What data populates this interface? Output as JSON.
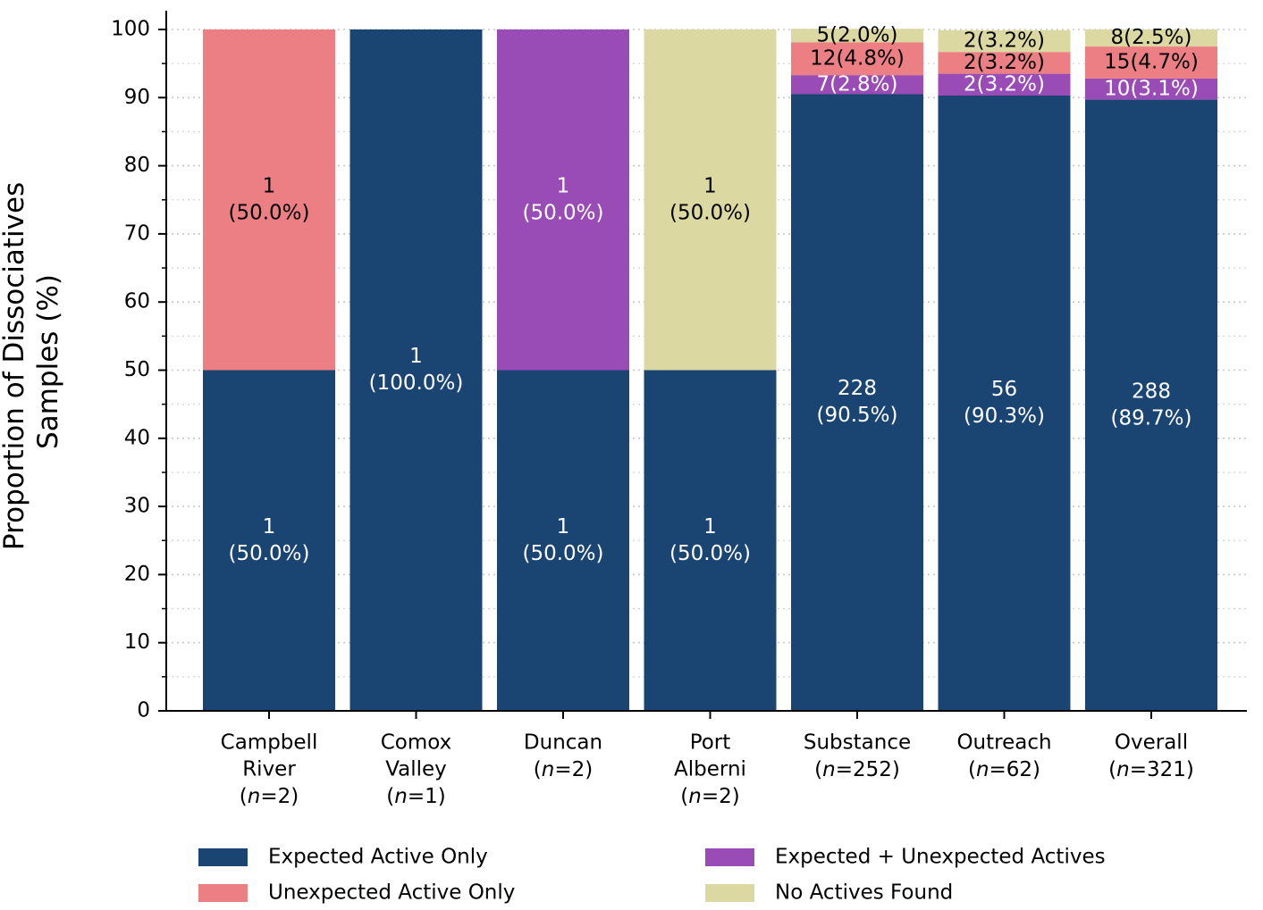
{
  "chart_data": {
    "type": "stacked_bar",
    "y_label": [
      "Proportion of Dissociatives",
      "Samples (%)"
    ],
    "categories": [
      [
        "Campbell",
        "River",
        "(n=2)"
      ],
      [
        "Comox",
        "Valley",
        "(n=1)"
      ],
      [
        "Duncan",
        "(n=2)"
      ],
      [
        "Port",
        "Alberni",
        "(n=2)"
      ],
      [
        "Substance",
        "(n=252)"
      ],
      [
        "Outreach",
        "(n=62)"
      ],
      [
        "Overall",
        "(n=321)"
      ]
    ],
    "series": [
      {
        "name": "Expected Active Only",
        "color": "#1a4573",
        "label_color": "#ffffff",
        "values": [
          50,
          100,
          50,
          50,
          90.5,
          90.3,
          89.7
        ],
        "value_labels": [
          [
            "1",
            "(50.0%)"
          ],
          [
            "1",
            "(100.0%)"
          ],
          [
            "1",
            "(50.0%)"
          ],
          [
            "1",
            "(50.0%)"
          ],
          [
            "228",
            "(90.5%)"
          ],
          [
            "56",
            "(90.3%)"
          ],
          [
            "288",
            "(89.7%)"
          ]
        ]
      },
      {
        "name": "Expected + Unexpected Actives",
        "color": "#9a4cb6",
        "label_color": "#ffffff",
        "values": [
          0,
          0,
          50,
          0,
          2.8,
          3.2,
          3.1
        ],
        "value_labels": [
          null,
          null,
          [
            "1",
            "(50.0%)"
          ],
          null,
          [
            "7(2.8%)"
          ],
          [
            "2(3.2%)"
          ],
          [
            "10(3.1%)"
          ]
        ]
      },
      {
        "name": "Unexpected Active Only",
        "color": "#ec7f83",
        "label_color": "#000000",
        "values": [
          50,
          0,
          0,
          0,
          4.8,
          3.2,
          4.7
        ],
        "value_labels": [
          [
            "1",
            "(50.0%)"
          ],
          null,
          null,
          null,
          [
            "12(4.8%)"
          ],
          [
            "2(3.2%)"
          ],
          [
            "15(4.7%)"
          ]
        ]
      },
      {
        "name": "No Actives Found",
        "color": "#dbd9a1",
        "label_color": "#000000",
        "values": [
          0,
          0,
          0,
          50,
          2.0,
          3.2,
          2.5
        ],
        "value_labels": [
          null,
          null,
          null,
          [
            "1",
            "(50.0%)"
          ],
          [
            "5(2.0%)"
          ],
          [
            "2(3.2%)"
          ],
          [
            "8(2.5%)"
          ]
        ]
      }
    ],
    "ylim": [
      0,
      100
    ],
    "yticks": [
      0,
      10,
      20,
      30,
      40,
      50,
      60,
      70,
      80,
      90,
      100
    ],
    "yminorticks": [
      5,
      15,
      25,
      35,
      45,
      55,
      65,
      75,
      85,
      95
    ],
    "grid": true,
    "legend": "bottom"
  }
}
